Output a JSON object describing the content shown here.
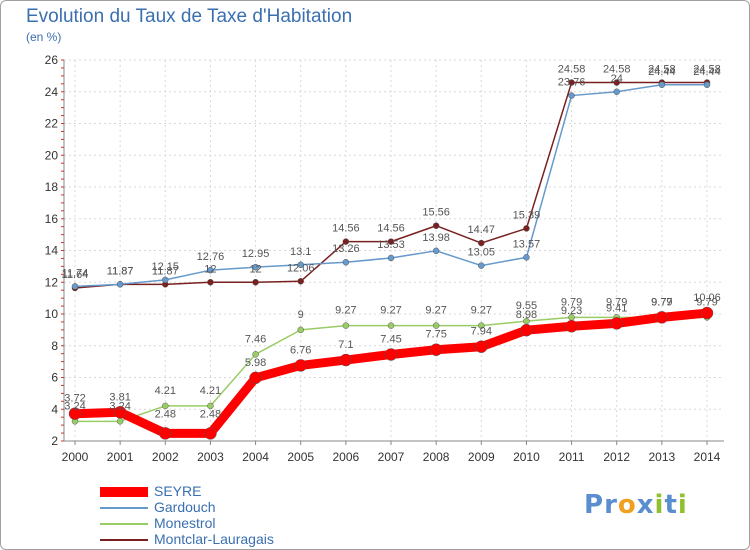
{
  "title": "Evolution du Taux de Taxe d'Habitation",
  "subtitle": "(en %)",
  "logo": {
    "text": "Proxiti",
    "letters": [
      {
        "ch": "P",
        "color": "#5a8ed0"
      },
      {
        "ch": "r",
        "color": "#5a8ed0"
      },
      {
        "ch": "o",
        "color": "#f0a020"
      },
      {
        "ch": "x",
        "color": "#5a8ed0"
      },
      {
        "ch": "i",
        "color": "#90c030"
      },
      {
        "ch": "t",
        "color": "#5a8ed0"
      },
      {
        "ch": "i",
        "color": "#90c030"
      }
    ]
  },
  "chart_data": {
    "type": "line",
    "title": "Evolution du Taux de Taxe d'Habitation",
    "ylabel": "(en %)",
    "xlabel": "",
    "x": [
      "2000",
      "2001",
      "2002",
      "2003",
      "2004",
      "2005",
      "2006",
      "2007",
      "2008",
      "2009",
      "2010",
      "2011",
      "2012",
      "2013",
      "2014"
    ],
    "ylim": [
      2,
      26
    ],
    "yticks": [
      2,
      4,
      6,
      8,
      10,
      12,
      14,
      16,
      18,
      20,
      22,
      24,
      26
    ],
    "grid": true,
    "legend": "bottom-left",
    "series": [
      {
        "name": "SEYRE",
        "color": "#ff0000",
        "values": [
          3.72,
          3.81,
          2.48,
          2.48,
          5.98,
          6.76,
          7.1,
          7.45,
          7.75,
          7.94,
          8.98,
          9.23,
          9.41,
          9.79,
          10.06
        ],
        "labels": [
          "3.72",
          "3.81",
          "2.48",
          "2.48",
          "5.98",
          "6.76",
          "7.1",
          "7.45",
          "7.75",
          "7.94",
          "8.98",
          "9.23",
          "9.41",
          "9.79",
          "10.06"
        ]
      },
      {
        "name": "Gardouch",
        "color": "#6699cc",
        "values": [
          11.74,
          11.87,
          12.15,
          12.76,
          12.95,
          13.1,
          13.26,
          13.53,
          13.98,
          13.05,
          13.57,
          23.76,
          24.0,
          24.44,
          24.44
        ],
        "labels": [
          "11.74",
          "11.87",
          "12.15",
          "12.76",
          "12.95",
          "13.1",
          "13.26",
          "13.53",
          "13.98",
          "13.05",
          "13.57",
          "23.76",
          "24",
          "24.44",
          "24.44"
        ]
      },
      {
        "name": "Monestrol",
        "color": "#99cc66",
        "values": [
          3.24,
          3.24,
          4.21,
          4.21,
          7.46,
          9.0,
          9.27,
          9.27,
          9.27,
          9.27,
          9.55,
          9.79,
          9.79,
          9.77,
          9.79
        ],
        "labels": [
          "3.24",
          "3.24",
          "4.21",
          "4.21",
          "7.46",
          "9",
          "9.27",
          "9.27",
          "9.27",
          "9.27",
          "9.55",
          "9.79",
          "9.79",
          "9.77",
          "9.79"
        ]
      },
      {
        "name": "Montclar-Lauragais",
        "color": "#7a2020",
        "values": [
          11.64,
          11.87,
          11.87,
          12.0,
          12.0,
          12.06,
          14.56,
          14.56,
          15.56,
          14.47,
          15.39,
          24.58,
          24.58,
          24.58,
          24.58
        ],
        "labels": [
          "11.64",
          "11.87",
          "11.87",
          "12",
          "12",
          "12.06",
          "14.56",
          "14.56",
          "15.56",
          "14.47",
          "15.39",
          "24.58",
          "24.58",
          "24.58",
          "24.58"
        ]
      }
    ]
  }
}
